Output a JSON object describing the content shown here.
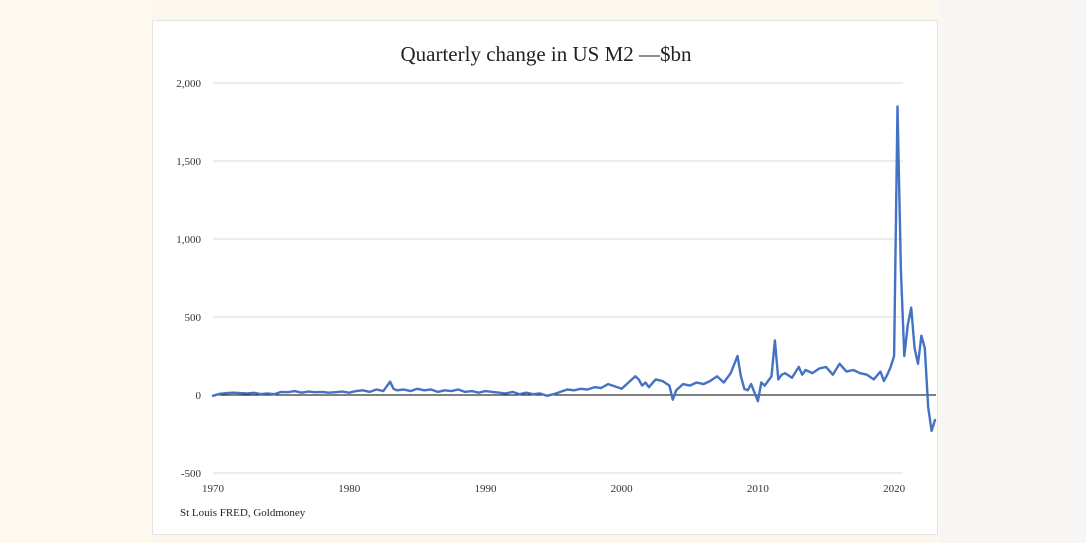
{
  "chart_data": {
    "type": "line",
    "title": "Quarterly change in US M2 —$bn",
    "source": "St Louis FRED, Goldmoney",
    "xlim": [
      1970,
      2023
    ],
    "ylim": [
      -500,
      2000
    ],
    "grid": true,
    "xticks": [
      {
        "v": 1970,
        "label": "1970"
      },
      {
        "v": 1980,
        "label": "1980"
      },
      {
        "v": 1990,
        "label": "1990"
      },
      {
        "v": 2000,
        "label": "2000"
      },
      {
        "v": 2010,
        "label": "2010"
      },
      {
        "v": 2020,
        "label": "2020"
      }
    ],
    "yticks": [
      {
        "v": 2000,
        "label": "2,000"
      },
      {
        "v": 1500,
        "label": "1,500"
      },
      {
        "v": 1000,
        "label": "1,000"
      },
      {
        "v": 500,
        "label": "500"
      },
      {
        "v": 0,
        "label": "0"
      },
      {
        "v": -500,
        "label": "-500"
      }
    ],
    "series": [
      {
        "name": "",
        "color": "#4472c4",
        "x": [
          1970.0,
          1970.5,
          1971.0,
          1971.5,
          1972.0,
          1972.5,
          1973.0,
          1973.5,
          1974.0,
          1974.5,
          1975.0,
          1975.5,
          1976.0,
          1976.5,
          1977.0,
          1977.5,
          1978.0,
          1978.5,
          1979.0,
          1979.5,
          1980.0,
          1980.5,
          1981.0,
          1981.5,
          1982.0,
          1982.5,
          1983.0,
          1983.25,
          1983.5,
          1984.0,
          1984.5,
          1985.0,
          1985.5,
          1986.0,
          1986.5,
          1987.0,
          1987.5,
          1988.0,
          1988.5,
          1989.0,
          1989.5,
          1990.0,
          1990.5,
          1991.0,
          1991.5,
          1992.0,
          1992.5,
          1993.0,
          1993.5,
          1994.0,
          1994.5,
          1995.0,
          1995.5,
          1996.0,
          1996.5,
          1997.0,
          1997.5,
          1998.0,
          1998.5,
          1999.0,
          1999.5,
          2000.0,
          2000.5,
          2001.0,
          2001.25,
          2001.5,
          2001.75,
          2002.0,
          2002.5,
          2003.0,
          2003.5,
          2003.75,
          2004.0,
          2004.5,
          2005.0,
          2005.5,
          2006.0,
          2006.5,
          2007.0,
          2007.5,
          2008.0,
          2008.5,
          2008.75,
          2009.0,
          2009.25,
          2009.5,
          2010.0,
          2010.25,
          2010.5,
          2011.0,
          2011.25,
          2011.5,
          2011.75,
          2012.0,
          2012.5,
          2013.0,
          2013.25,
          2013.5,
          2014.0,
          2014.5,
          2015.0,
          2015.5,
          2016.0,
          2016.5,
          2017.0,
          2017.5,
          2018.0,
          2018.5,
          2019.0,
          2019.25,
          2019.5,
          2019.75,
          2020.0,
          2020.25,
          2020.5,
          2020.75,
          2021.0,
          2021.25,
          2021.5,
          2021.75,
          2022.0,
          2022.25,
          2022.5,
          2022.75,
          2023.0
        ],
        "y": [
          -5,
          8,
          12,
          15,
          12,
          10,
          14,
          6,
          10,
          5,
          20,
          18,
          25,
          15,
          22,
          18,
          20,
          15,
          18,
          22,
          15,
          25,
          30,
          20,
          35,
          25,
          85,
          40,
          30,
          35,
          25,
          40,
          30,
          35,
          20,
          30,
          25,
          35,
          20,
          25,
          15,
          25,
          20,
          15,
          10,
          20,
          5,
          15,
          5,
          10,
          -5,
          5,
          20,
          35,
          30,
          40,
          35,
          50,
          45,
          70,
          55,
          40,
          80,
          120,
          100,
          60,
          80,
          50,
          100,
          90,
          60,
          -30,
          30,
          70,
          60,
          80,
          70,
          90,
          120,
          80,
          140,
          250,
          120,
          40,
          30,
          70,
          -40,
          80,
          60,
          120,
          350,
          100,
          130,
          140,
          110,
          180,
          130,
          160,
          140,
          170,
          180,
          130,
          200,
          150,
          160,
          140,
          130,
          100,
          150,
          90,
          130,
          180,
          250,
          1850,
          800,
          250,
          450,
          560,
          300,
          200,
          380,
          300,
          -80,
          -230,
          -160
        ]
      }
    ]
  }
}
